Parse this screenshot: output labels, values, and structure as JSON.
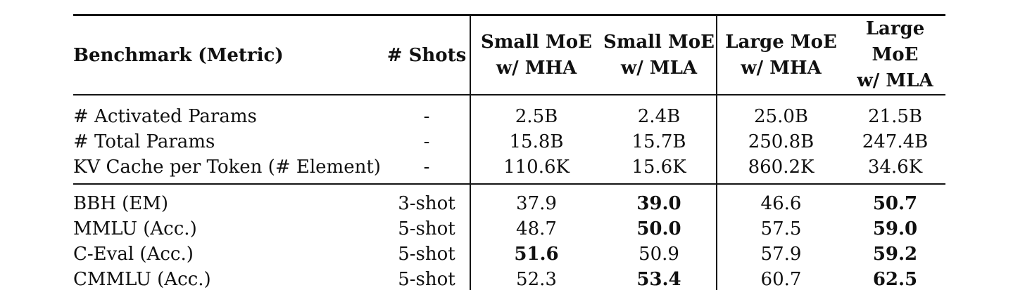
{
  "colors": {
    "background": "#ffffff",
    "text": "#101010",
    "rule": "#141414"
  },
  "table": {
    "columns": [
      {
        "label": "Benchmark (Metric)"
      },
      {
        "label": "# Shots"
      },
      {
        "line1": "Small MoE",
        "line2": "w/ MHA"
      },
      {
        "line1": "Small MoE",
        "line2": "w/ MLA"
      },
      {
        "line1": "Large MoE",
        "line2": "w/ MHA"
      },
      {
        "line1": "Large MoE",
        "line2": "w/ MLA"
      }
    ],
    "param_rows": [
      {
        "metric": "# Activated Params",
        "shots": "-",
        "values": [
          {
            "v": "2.5B"
          },
          {
            "v": "2.4B"
          },
          {
            "v": "25.0B"
          },
          {
            "v": "21.5B"
          }
        ]
      },
      {
        "metric": "# Total Params",
        "shots": "-",
        "values": [
          {
            "v": "15.8B"
          },
          {
            "v": "15.7B"
          },
          {
            "v": "250.8B"
          },
          {
            "v": "247.4B"
          }
        ]
      },
      {
        "metric": "KV Cache per Token (# Element)",
        "shots": "-",
        "values": [
          {
            "v": "110.6K"
          },
          {
            "v": "15.6K"
          },
          {
            "v": "860.2K"
          },
          {
            "v": "34.6K"
          }
        ]
      }
    ],
    "benchmark_rows": [
      {
        "metric": "BBH (EM)",
        "shots": "3-shot",
        "values": [
          {
            "v": "37.9",
            "b": false
          },
          {
            "v": "39.0",
            "b": true
          },
          {
            "v": "46.6",
            "b": false
          },
          {
            "v": "50.7",
            "b": true
          }
        ]
      },
      {
        "metric": "MMLU (Acc.)",
        "shots": "5-shot",
        "values": [
          {
            "v": "48.7",
            "b": false
          },
          {
            "v": "50.0",
            "b": true
          },
          {
            "v": "57.5",
            "b": false
          },
          {
            "v": "59.0",
            "b": true
          }
        ]
      },
      {
        "metric": "C-Eval (Acc.)",
        "shots": "5-shot",
        "values": [
          {
            "v": "51.6",
            "b": true
          },
          {
            "v": "50.9",
            "b": false
          },
          {
            "v": "57.9",
            "b": false
          },
          {
            "v": "59.2",
            "b": true
          }
        ]
      },
      {
        "metric": "CMMLU (Acc.)",
        "shots": "5-shot",
        "values": [
          {
            "v": "52.3",
            "b": false
          },
          {
            "v": "53.4",
            "b": true
          },
          {
            "v": "60.7",
            "b": false
          },
          {
            "v": "62.5",
            "b": true
          }
        ]
      }
    ]
  }
}
